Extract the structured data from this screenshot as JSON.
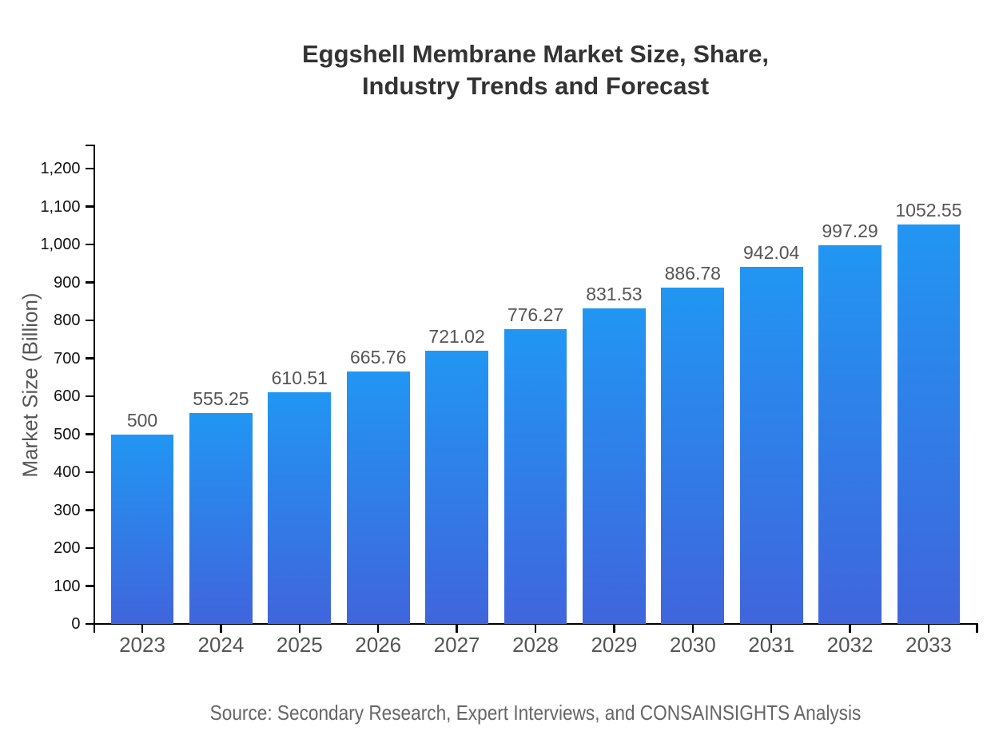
{
  "title": "Eggshell Membrane Market Size, Share,\nIndustry Trends and Forecast",
  "source": "Source: Secondary Research, Expert Interviews, and CONSAINSIGHTS Analysis",
  "chart_data": {
    "type": "bar",
    "title": "Eggshell Membrane Market Size, Share, Industry Trends and Forecast",
    "xlabel": "",
    "ylabel": "Market Size (Billion)",
    "categories": [
      "2023",
      "2024",
      "2025",
      "2026",
      "2027",
      "2028",
      "2029",
      "2030",
      "2031",
      "2032",
      "2033"
    ],
    "values": [
      500,
      555.25,
      610.51,
      665.76,
      721.02,
      776.27,
      831.53,
      886.78,
      942.04,
      997.29,
      1052.55
    ],
    "value_labels": [
      "500",
      "555.25",
      "610.51",
      "665.76",
      "721.02",
      "776.27",
      "831.53",
      "886.78",
      "942.04",
      "997.29",
      "1052.55"
    ],
    "ylim": [
      0,
      1260
    ],
    "y_tick_values": [
      0,
      100,
      200,
      300,
      400,
      500,
      600,
      700,
      800,
      900,
      1000,
      1100,
      1200
    ],
    "y_tick_labels": [
      "0",
      "100",
      "200",
      "300",
      "400",
      "500",
      "600",
      "700",
      "800",
      "900",
      "1,000",
      "1,100",
      "1,200"
    ],
    "grid": false,
    "legend": false,
    "colors": {
      "bar_gradient_top": "#2196f3",
      "bar_gradient_bottom": "#4065dc",
      "axis": "#000000",
      "y_tick_label": "#111111",
      "x_tick_label": "#555555",
      "value_label": "#555555",
      "title": "#333333",
      "source": "#666666",
      "ylabel": "#555555"
    }
  }
}
